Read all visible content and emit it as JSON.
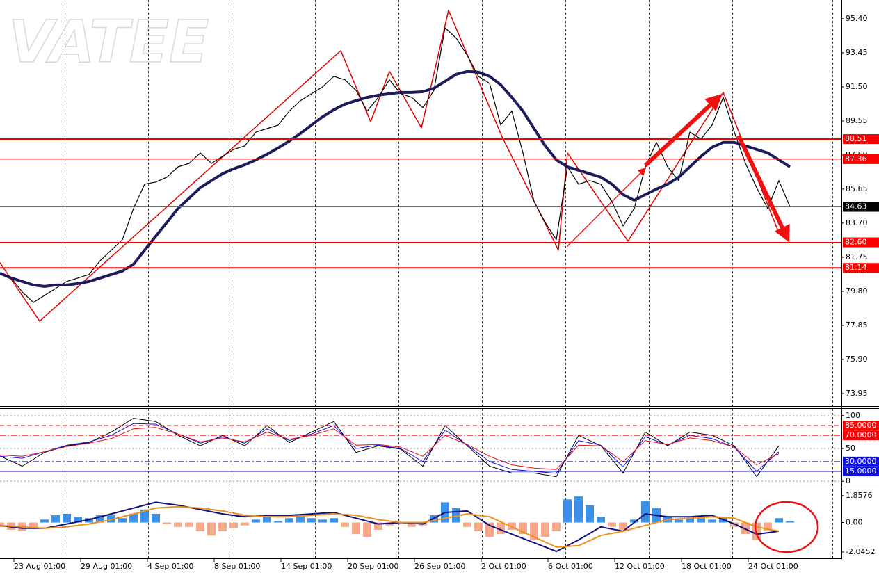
{
  "watermark": "VATEE",
  "chart_data": [
    {
      "type": "line",
      "xlim": [
        0,
        151.25
      ],
      "ylim": [
        73.23,
        96.47
      ],
      "yticks": [
        {
          "value": 95.4,
          "label": "95.40"
        },
        {
          "value": 93.45,
          "label": "93.45"
        },
        {
          "value": 91.5,
          "label": "91.50"
        },
        {
          "value": 89.55,
          "label": "89.55"
        },
        {
          "value": 87.6,
          "label": "87.60"
        },
        {
          "value": 85.65,
          "label": "85.65"
        },
        {
          "value": 83.7,
          "label": "83.70"
        },
        {
          "value": 81.75,
          "label": "81.75"
        },
        {
          "value": 79.8,
          "label": "79.80"
        },
        {
          "value": 77.85,
          "label": "77.85"
        },
        {
          "value": 75.9,
          "label": "75.90"
        },
        {
          "value": 73.95,
          "label": "73.95"
        }
      ],
      "xticks": [
        {
          "value": 2.5,
          "label": "23 Aug 01:00"
        },
        {
          "value": 14.5,
          "label": "29 Aug 01:00"
        },
        {
          "value": 26.5,
          "label": "4 Sep 01:00"
        },
        {
          "value": 38.5,
          "label": "8 Sep 01:00"
        },
        {
          "value": 50.5,
          "label": "14 Sep 01:00"
        },
        {
          "value": 62.5,
          "label": "20 Sep 01:00"
        },
        {
          "value": 74.5,
          "label": "26 Sep 01:00"
        },
        {
          "value": 86.5,
          "label": "2 Oct 01:00"
        },
        {
          "value": 98.5,
          "label": "6 Oct 01:00"
        },
        {
          "value": 110.5,
          "label": "12 Oct 01:00"
        },
        {
          "value": 122.5,
          "label": "18 Oct 01:00"
        },
        {
          "value": 134.5,
          "label": "24 Oct 01:00"
        }
      ],
      "xgrid": [
        11.625,
        26.625,
        41.625,
        56.625,
        71.625,
        86.625,
        101.625,
        116.625,
        131.625,
        149.625
      ],
      "x": [
        0,
        2,
        4,
        6,
        8,
        10,
        12,
        14,
        16,
        18,
        20,
        22,
        24,
        26,
        28,
        30,
        32,
        34,
        36,
        38,
        40,
        42,
        44,
        46,
        48,
        50,
        52,
        54,
        56,
        58,
        60,
        62,
        64,
        66,
        68,
        70,
        72,
        74,
        76,
        78,
        80,
        82,
        84,
        86,
        88,
        90,
        92,
        94,
        96,
        98,
        100,
        102,
        104,
        106,
        108,
        110,
        112,
        114,
        116,
        118,
        120,
        122,
        124,
        126,
        128,
        130,
        132,
        134,
        136,
        138,
        140,
        142
      ],
      "series": [
        {
          "color": "#000000",
          "width": 1.2,
          "values": [
            80.76,
            80.56,
            79.76,
            79.16,
            79.56,
            79.96,
            80.36,
            80.56,
            80.76,
            81.55,
            82.15,
            82.75,
            84.54,
            85.93,
            86.05,
            86.33,
            86.92,
            87.12,
            87.72,
            87.12,
            87.52,
            87.92,
            88.12,
            88.91,
            89.11,
            89.31,
            90.11,
            90.71,
            91.11,
            91.5,
            92.1,
            91.9,
            91.3,
            90.11,
            90.9,
            91.9,
            91.11,
            90.9,
            90.31,
            91.3,
            94.88,
            94.29,
            93.29,
            92.1,
            91.7,
            89.31,
            90.11,
            87.72,
            84.93,
            83.74,
            82.75,
            86.92,
            85.93,
            86.13,
            85.93,
            84.93,
            83.54,
            84.54,
            86.92,
            88.32,
            86.92,
            86.13,
            88.91,
            88.51,
            89.31,
            90.9,
            88.91,
            87.12,
            85.73,
            84.54,
            86.13,
            84.63
          ]
        },
        {
          "color": "#1c1c5c",
          "width": 4,
          "values": [
            80.84,
            80.56,
            80.36,
            80.16,
            80.08,
            80.16,
            80.16,
            80.24,
            80.36,
            80.56,
            80.76,
            80.96,
            81.35,
            82.15,
            82.95,
            83.74,
            84.54,
            85.13,
            85.73,
            86.13,
            86.53,
            86.81,
            87.04,
            87.32,
            87.64,
            88.0,
            88.4,
            88.83,
            89.31,
            89.79,
            90.19,
            90.51,
            90.71,
            90.9,
            91.02,
            91.11,
            91.18,
            91.18,
            91.22,
            91.42,
            91.82,
            92.22,
            92.38,
            92.34,
            92.1,
            91.62,
            90.9,
            90.11,
            89.11,
            88.12,
            87.32,
            86.92,
            86.73,
            86.53,
            86.33,
            85.93,
            85.33,
            85.01,
            85.33,
            85.65,
            85.93,
            86.33,
            86.92,
            87.52,
            88.04,
            88.32,
            88.32,
            88.12,
            87.92,
            87.72,
            87.32,
            86.92
          ]
        }
      ],
      "zigzag": {
        "color": "#e00000",
        "x": [
          0,
          7.125,
          61.25,
          66.625,
          70,
          75.75,
          80.625,
          90.25,
          100.375,
          102,
          112.875,
          130,
          140
        ],
        "values": [
          81.43,
          78.09,
          93.57,
          89.51,
          92.38,
          89.15,
          95.88,
          88.64,
          82.15,
          87.72,
          82.67,
          91.18,
          83.14
        ]
      },
      "levels": [
        {
          "value": 88.51,
          "label": "88.51",
          "color": "#ff0000",
          "box": "#ff0000",
          "width": 2,
          "style": "solid"
        },
        {
          "value": 87.36,
          "label": "87.36",
          "color": "#ff0000",
          "box": "#ff0000",
          "width": 1,
          "style": "solid"
        },
        {
          "value": 84.63,
          "label": "84.63",
          "color": "#3a6fd8",
          "box": "#000000",
          "width": 1,
          "style": "solid"
        },
        {
          "value": 82.6,
          "label": "82.60",
          "color": "#ff0000",
          "box": "#ff0000",
          "width": 1,
          "style": "solid"
        },
        {
          "value": 81.14,
          "label": "81.14",
          "color": "#ff0000",
          "box": "#ff0000",
          "width": 2,
          "style": "solid"
        }
      ]
    },
    {
      "type": "line",
      "xlim": [
        0,
        151.25
      ],
      "ylim": [
        -8.3,
        110.4
      ],
      "yticks": [
        100,
        50,
        0
      ],
      "x": [
        0,
        4,
        8,
        12,
        16,
        20,
        24,
        28,
        32,
        36,
        40,
        44,
        48,
        52,
        56,
        60,
        64,
        68,
        72,
        76,
        80,
        84,
        88,
        92,
        96,
        100,
        104,
        108,
        112,
        116,
        120,
        124,
        128,
        132,
        136,
        140
      ],
      "series": [
        {
          "color": "#000000",
          "width": 1,
          "values": [
            38.5,
            23,
            44,
            54,
            59,
            75,
            96,
            91,
            70,
            54,
            70,
            54,
            85,
            59,
            75,
            91,
            44,
            54,
            49,
            23,
            85,
            54,
            23,
            12.5,
            12.5,
            7,
            70,
            54,
            12.5,
            75,
            54,
            75,
            70,
            54,
            7,
            54
          ]
        },
        {
          "color": "#1010e0",
          "width": 1,
          "values": [
            38,
            35,
            45,
            55,
            60,
            70,
            88,
            87,
            72,
            58,
            68,
            58,
            80,
            62,
            72,
            85,
            50,
            55,
            50,
            30,
            78,
            55,
            30,
            18,
            15,
            12,
            62,
            55,
            22,
            68,
            55,
            70,
            65,
            52,
            15,
            45
          ]
        },
        {
          "color": "#e01010",
          "width": 1,
          "values": [
            40,
            38,
            45,
            53,
            58,
            65,
            80,
            82,
            72,
            60,
            66,
            60,
            75,
            64,
            70,
            80,
            55,
            56,
            52,
            38,
            70,
            56,
            38,
            25,
            20,
            18,
            55,
            54,
            30,
            62,
            56,
            66,
            62,
            52,
            25,
            42
          ]
        }
      ],
      "levels": [
        {
          "value": 85,
          "label": "85.0000",
          "color": "#ff0000",
          "box": "#ff0000",
          "width": 1,
          "style": "dash"
        },
        {
          "value": 70,
          "label": "70.0000",
          "color": "#ff0000",
          "box": "#ff0000",
          "width": 1,
          "style": "dashdot"
        },
        {
          "value": 30,
          "label": "30.0000",
          "color": "#1010e0",
          "box": "#1010e0",
          "width": 1,
          "style": "dashdot"
        },
        {
          "value": 15,
          "label": "15.0000",
          "color": "#1010e0",
          "box": "#1010e0",
          "width": 1,
          "style": "solid"
        }
      ]
    },
    {
      "type": "macd",
      "xlim": [
        0,
        151.25
      ],
      "ylim": [
        -2.476,
        2.286
      ],
      "yticks": [
        1.8576,
        {
          "value": 0,
          "label": "0.00"
        },
        -2.0452
      ],
      "x": [
        0,
        4,
        8,
        12,
        16,
        20,
        24,
        28,
        32,
        36,
        40,
        44,
        48,
        52,
        56,
        60,
        64,
        68,
        72,
        76,
        80,
        84,
        88,
        92,
        96,
        100,
        104,
        108,
        112,
        116,
        120,
        124,
        128,
        132,
        136,
        140
      ],
      "series": [
        {
          "color": "#101080",
          "width": 2,
          "values": [
            -0.2,
            -0.4,
            -0.4,
            -0.1,
            0.2,
            0.6,
            1.0,
            1.4,
            1.2,
            0.9,
            0.6,
            0.4,
            0.5,
            0.5,
            0.6,
            0.7,
            0.3,
            -0.1,
            0.0,
            -0.1,
            0.7,
            0.8,
            -0.2,
            -0.8,
            -1.4,
            -2.0,
            -1.2,
            -0.3,
            -0.6,
            0.6,
            0.4,
            0.4,
            0.5,
            -0.1,
            -0.8,
            -0.6
          ]
        },
        {
          "color": "#f0901a",
          "width": 2,
          "values": [
            -0.2,
            -0.3,
            -0.4,
            -0.3,
            -0.1,
            0.2,
            0.6,
            1.0,
            1.1,
            1.0,
            0.8,
            0.5,
            0.4,
            0.4,
            0.5,
            0.6,
            0.5,
            0.2,
            0.0,
            0.0,
            0.3,
            0.6,
            0.4,
            -0.3,
            -1.0,
            -1.7,
            -1.6,
            -0.9,
            -0.6,
            -0.2,
            0.2,
            0.3,
            0.4,
            0.3,
            -0.3,
            -0.6
          ]
        }
      ],
      "histogram": {
        "color_up": "#3a8fe8",
        "color_down": "#f6a88a",
        "x": [
          0,
          2,
          4,
          6,
          8,
          10,
          12,
          14,
          16,
          18,
          20,
          22,
          24,
          26,
          28,
          30,
          32,
          34,
          36,
          38,
          40,
          42,
          44,
          46,
          48,
          50,
          52,
          54,
          56,
          58,
          60,
          62,
          64,
          66,
          68,
          70,
          72,
          74,
          76,
          78,
          80,
          82,
          84,
          86,
          88,
          90,
          92,
          94,
          96,
          98,
          100,
          102,
          104,
          106,
          108,
          110,
          112,
          114,
          116,
          118,
          120,
          122,
          124,
          126,
          128,
          130,
          132,
          134,
          136,
          138,
          140,
          142
        ],
        "values": [
          -0.3,
          -0.5,
          -0.6,
          -0.4,
          0.2,
          0.5,
          0.6,
          0.4,
          0.3,
          0.5,
          0.5,
          0.3,
          0.6,
          0.9,
          0.6,
          -0.1,
          -0.3,
          -0.3,
          -0.6,
          -0.9,
          -0.6,
          -0.4,
          -0.2,
          0.2,
          0.4,
          0.1,
          0.3,
          0.5,
          0.3,
          0.2,
          0.3,
          -0.3,
          -0.8,
          -1.0,
          -0.5,
          -0.2,
          -0.1,
          -0.3,
          -0.2,
          0.5,
          1.4,
          1.0,
          -0.3,
          -0.6,
          -1.0,
          -0.8,
          -0.5,
          -0.8,
          -1.2,
          -1.0,
          -0.6,
          1.6,
          1.8,
          1.2,
          0.4,
          -0.3,
          -0.5,
          0.2,
          1.5,
          1.0,
          0.4,
          0.2,
          0.3,
          0.3,
          0.2,
          0.4,
          -0.3,
          -0.8,
          -1.2,
          -0.6,
          0.3,
          0.1
        ]
      }
    }
  ]
}
